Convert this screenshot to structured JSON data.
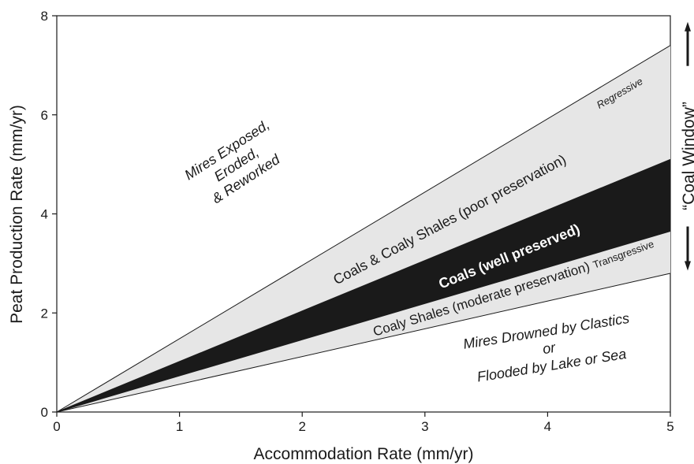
{
  "chart_data": {
    "type": "area",
    "xlabel": "Accommodation Rate (mm/yr)",
    "ylabel": "Peat Production Rate (mm/yr)",
    "xlim": [
      0,
      5
    ],
    "ylim": [
      0,
      8
    ],
    "x_ticks": [
      0,
      1,
      2,
      3,
      4,
      5
    ],
    "y_ticks": [
      0,
      2,
      4,
      6,
      8
    ],
    "grid": false,
    "boundary_lines": {
      "regressive": {
        "x": [
          0,
          5
        ],
        "y": [
          0,
          7.4
        ]
      },
      "upper_well_preserved": {
        "x": [
          0,
          5
        ],
        "y": [
          0,
          5.1
        ]
      },
      "lower_well_preserved": {
        "x": [
          0,
          5
        ],
        "y": [
          0,
          3.65
        ]
      },
      "transgressive": {
        "x": [
          0,
          5
        ],
        "y": [
          0,
          2.8
        ]
      }
    },
    "bands": [
      {
        "label": "Coals & Coaly Shales (poor preservation)",
        "lower": "upper_well_preserved",
        "upper": "regressive",
        "color": "#e6e6e6"
      },
      {
        "label": "Coals (well preserved)",
        "lower": "lower_well_preserved",
        "upper": "upper_well_preserved",
        "color": "#1a1a1a"
      },
      {
        "label": "Coaly Shales (moderate preservation)",
        "lower": "transgressive",
        "upper": "lower_well_preserved",
        "color": "#e6e6e6"
      }
    ],
    "annotations": {
      "mires_exposed": [
        "Mires Exposed,",
        "Eroded,",
        "& Reworked"
      ],
      "mires_drowned": [
        "Mires Drowned by Clastics",
        "or",
        "Flooded by Lake or Sea"
      ],
      "regressive": "Regressive",
      "transgressive": "Transgressive",
      "poor": "Coals & Coaly Shales (poor preservation)",
      "well": "Coals (well preserved)",
      "moderate": "Coaly Shales (moderate preservation)",
      "coal_window": "“Coal Window”"
    },
    "coal_window_range": [
      3.65,
      7.4
    ]
  }
}
